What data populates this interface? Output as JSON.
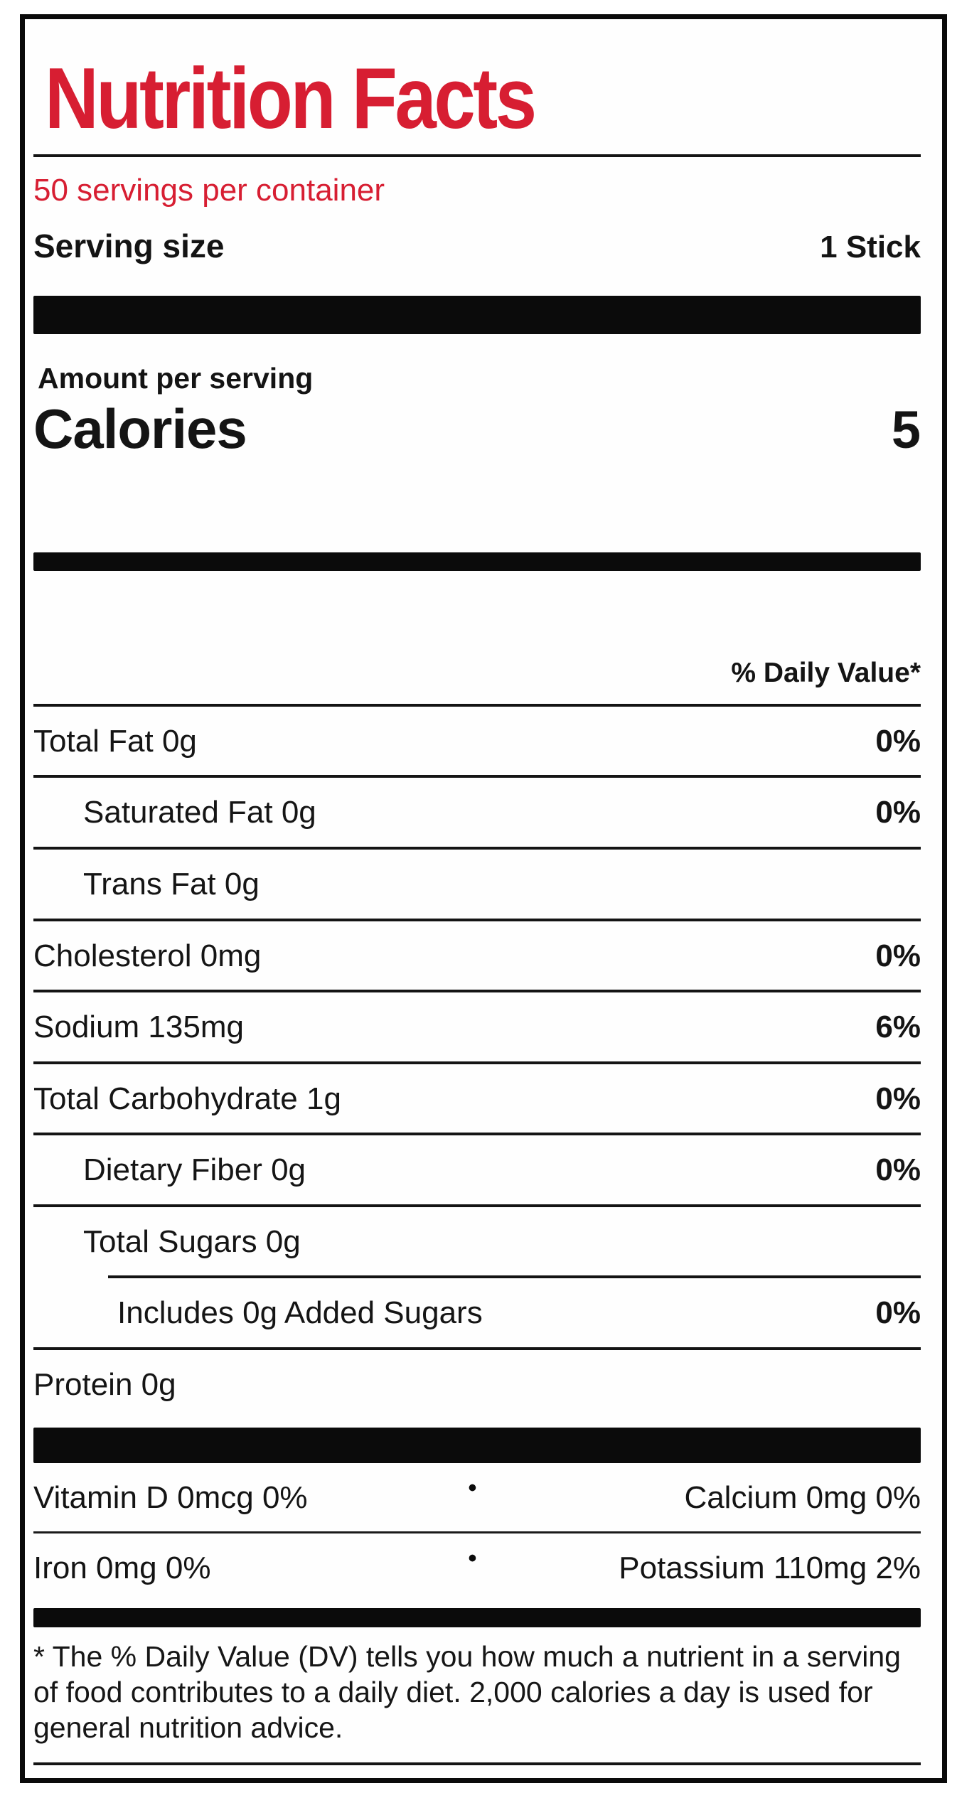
{
  "label": {
    "title": "Nutrition Facts",
    "servings_per_container": "50 servings per container",
    "serving_size_label": "Serving size",
    "serving_size_value": "1 Stick",
    "amount_per_serving": "Amount per serving",
    "calories_label": "Calories",
    "calories_value": "5",
    "daily_value_header": "% Daily Value*",
    "nutrients": [
      {
        "name": "Total Fat 0g",
        "dv": "0%"
      },
      {
        "name": "Saturated Fat 0g",
        "dv": "0%"
      },
      {
        "name": "Trans Fat 0g",
        "dv": ""
      },
      {
        "name": "Cholesterol 0mg",
        "dv": "0%"
      },
      {
        "name": "Sodium 135mg",
        "dv": "6%"
      },
      {
        "name": "Total Carbohydrate 1g",
        "dv": "0%"
      },
      {
        "name": "Dietary Fiber 0g",
        "dv": "0%"
      },
      {
        "name": "Total Sugars 0g",
        "dv": ""
      },
      {
        "name": "Includes 0g Added Sugars",
        "dv": "0%"
      },
      {
        "name": "Protein 0g",
        "dv": ""
      }
    ],
    "bullet": "•",
    "micronutrients": [
      {
        "left": "Vitamin D 0mcg 0%",
        "right": "Calcium 0mg 0%"
      },
      {
        "left": "Iron 0mg 0%",
        "right": "Potassium 110mg 2%"
      }
    ],
    "footnote": "* The % Daily Value (DV) tells you how much a nutrient in a serving of food contributes to a daily diet. 2,000 calories a day is used for general nutrition advice.",
    "colors": {
      "accent_red": "#d71e32",
      "text_black": "#141414",
      "bar_black": "#0b0b0b"
    }
  }
}
